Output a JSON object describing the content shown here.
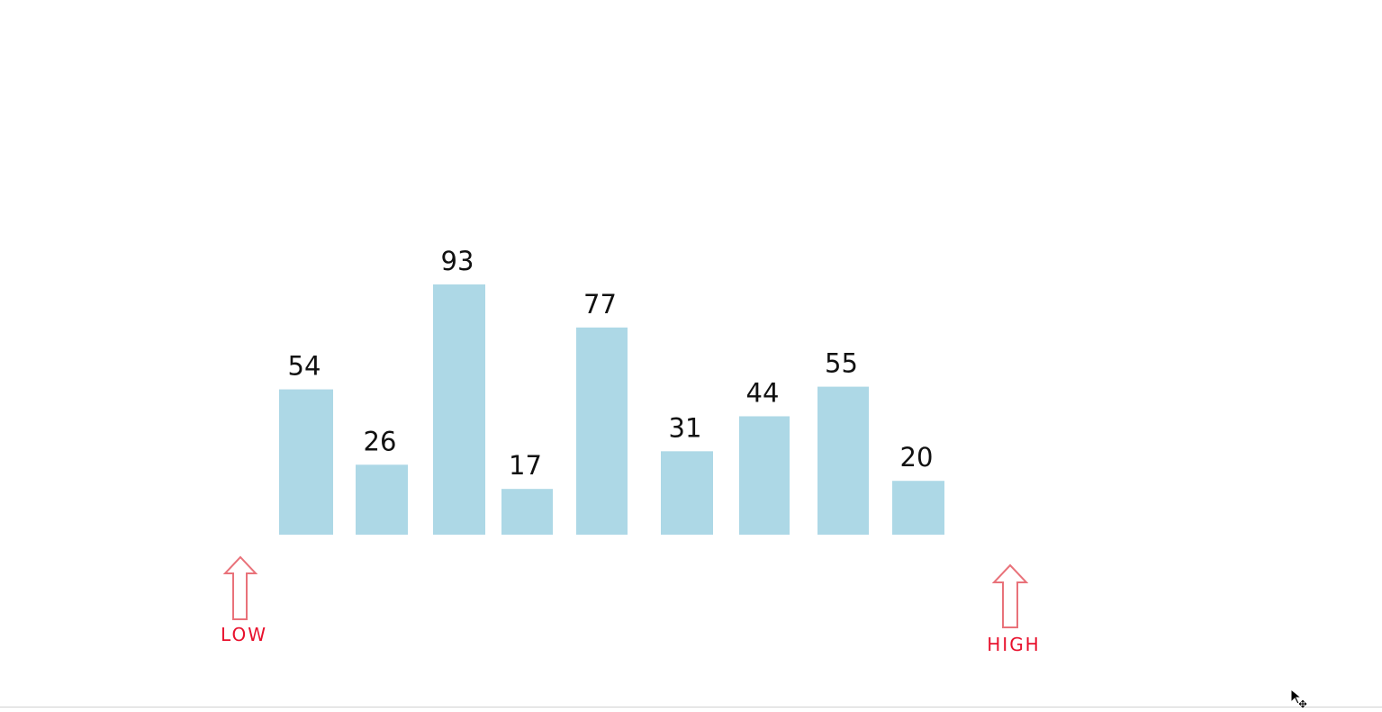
{
  "chart_data": {
    "type": "bar",
    "values": [
      54,
      26,
      93,
      17,
      77,
      31,
      44,
      55,
      20
    ],
    "labels": [
      "54",
      "26",
      "93",
      "17",
      "77",
      "31",
      "44",
      "55",
      "20"
    ],
    "bar_color": "#add8e6",
    "grid": false
  },
  "pointers": {
    "low": {
      "label": "LOW",
      "index": 0,
      "color": "#e8112d",
      "arrow_color": "#e9727a",
      "icon": "up-arrow-icon"
    },
    "high": {
      "label": "HIGH",
      "index": 8,
      "color": "#e8112d",
      "arrow_color": "#e9727a",
      "icon": "up-arrow-icon"
    }
  },
  "cursor": {
    "icon": "move-cursor-icon"
  }
}
